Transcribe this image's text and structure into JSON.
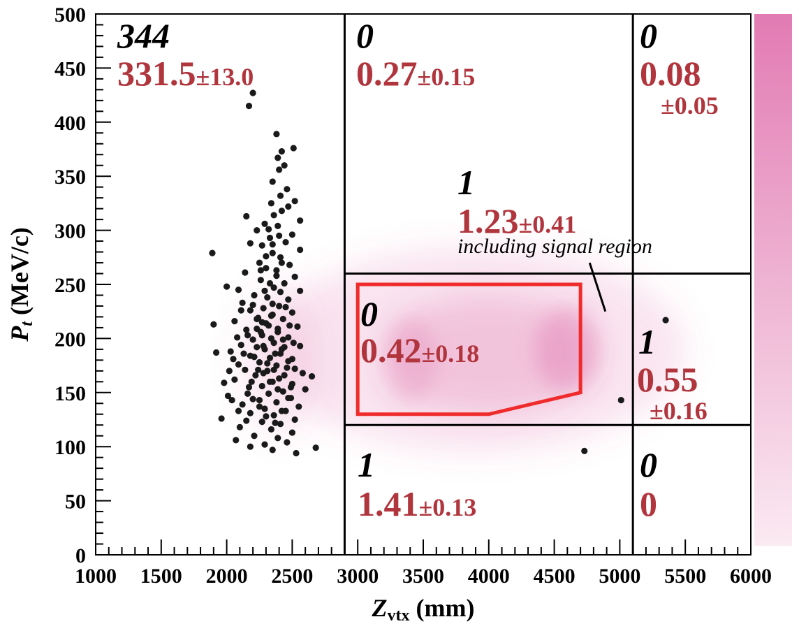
{
  "colors": {
    "estimate_text": "#b0353d",
    "signal_box": "#ef2b2b",
    "points": "#1a1a1a",
    "density": "#d9549a",
    "colorbar_top": "#e27bb3",
    "colorbar_bottom": "#fbeaf2"
  },
  "chart_data": {
    "type": "scatter",
    "xlabel_main": "Z",
    "xlabel_sub": "vtx",
    "xlabel_unit": " (mm)",
    "ylabel_main": "P",
    "ylabel_sub": "t",
    "ylabel_unit": " (MeV/c)",
    "xlim": [
      1000,
      6000
    ],
    "ylim": [
      0,
      500
    ],
    "xticks": [
      "1000",
      "1500",
      "2000",
      "2500",
      "3000",
      "3500",
      "4000",
      "4500",
      "5000",
      "5500",
      "6000"
    ],
    "yticks": [
      "0",
      "50",
      "100",
      "150",
      "200",
      "250",
      "300",
      "350",
      "400",
      "450",
      "500"
    ],
    "region_boundaries": {
      "x": [
        2900,
        5100
      ],
      "y": [
        120,
        260
      ]
    },
    "signal_box": [
      [
        3000,
        250
      ],
      [
        4700,
        250
      ],
      [
        4700,
        150
      ],
      [
        4000,
        130
      ],
      [
        3000,
        130
      ]
    ],
    "signal_annotation": "including signal region",
    "regions": [
      {
        "count": "344",
        "estimate": "331.5",
        "error": "±13.0"
      },
      {
        "count": "0",
        "estimate": "0.27",
        "error": "±0.15"
      },
      {
        "count": "0",
        "estimate": "0.08",
        "error": "±0.05"
      },
      {
        "count": "1",
        "estimate": "1.23",
        "error": "±0.41"
      },
      {
        "count": "0",
        "estimate": "0.42",
        "error": "±0.18"
      },
      {
        "count": "1",
        "estimate": "0.55",
        "error": "±0.16"
      },
      {
        "count": "1",
        "estimate": "1.41",
        "error": "±0.13"
      },
      {
        "count": "0",
        "estimate": "0",
        "error": ""
      }
    ],
    "points": [
      [
        2200,
        427
      ],
      [
        2170,
        415
      ],
      [
        2380,
        389
      ],
      [
        2420,
        373
      ],
      [
        2510,
        376
      ],
      [
        2390,
        367
      ],
      [
        2440,
        360
      ],
      [
        2400,
        356
      ],
      [
        2350,
        345
      ],
      [
        2460,
        338
      ],
      [
        2410,
        332
      ],
      [
        2520,
        327
      ],
      [
        2340,
        325
      ],
      [
        2470,
        322
      ],
      [
        2360,
        314
      ],
      [
        2420,
        318
      ],
      [
        2150,
        313
      ],
      [
        2560,
        309
      ],
      [
        2290,
        306
      ],
      [
        2390,
        304
      ],
      [
        2230,
        300
      ],
      [
        2500,
        296
      ],
      [
        2330,
        293
      ],
      [
        2450,
        289
      ],
      [
        2270,
        286
      ],
      [
        2180,
        288
      ],
      [
        1890,
        279
      ],
      [
        2560,
        282
      ],
      [
        2350,
        279
      ],
      [
        2410,
        275
      ],
      [
        2250,
        270
      ],
      [
        2480,
        268
      ],
      [
        2300,
        265
      ],
      [
        2140,
        261
      ],
      [
        2380,
        258
      ],
      [
        2520,
        257
      ],
      [
        2260,
        254
      ],
      [
        2440,
        251
      ],
      [
        2000,
        248
      ],
      [
        2360,
        247
      ],
      [
        2090,
        245
      ],
      [
        2560,
        244
      ],
      [
        2210,
        240
      ],
      [
        2310,
        238
      ],
      [
        2470,
        236
      ],
      [
        2120,
        233
      ],
      [
        2400,
        230
      ],
      [
        2280,
        228
      ],
      [
        2180,
        226
      ],
      [
        2500,
        224
      ],
      [
        2350,
        222
      ],
      [
        2240,
        219
      ],
      [
        2430,
        218
      ],
      [
        2060,
        216
      ],
      [
        1900,
        213
      ],
      [
        2320,
        212
      ],
      [
        2540,
        211
      ],
      [
        2150,
        208
      ],
      [
        2390,
        206
      ],
      [
        2270,
        203
      ],
      [
        2470,
        201
      ],
      [
        2200,
        199
      ],
      [
        2360,
        196
      ],
      [
        2110,
        194
      ],
      [
        2440,
        192
      ],
      [
        2560,
        193
      ],
      [
        2290,
        190
      ],
      [
        2030,
        188
      ],
      [
        1920,
        187
      ],
      [
        2410,
        186
      ],
      [
        2180,
        184
      ],
      [
        2330,
        182
      ],
      [
        2500,
        181
      ],
      [
        2250,
        178
      ],
      [
        2090,
        176
      ],
      [
        2380,
        175
      ],
      [
        2460,
        173
      ],
      [
        2140,
        171
      ],
      [
        2310,
        170
      ],
      [
        2580,
        168
      ],
      [
        2220,
        166
      ],
      [
        2650,
        165
      ],
      [
        2400,
        163
      ],
      [
        2060,
        162
      ],
      [
        2350,
        160
      ],
      [
        2500,
        158
      ],
      [
        2270,
        156
      ],
      [
        2170,
        155
      ],
      [
        2600,
        153
      ],
      [
        2430,
        151
      ],
      [
        2320,
        149
      ],
      [
        2010,
        147
      ],
      [
        2490,
        145
      ],
      [
        2250,
        143
      ],
      [
        2380,
        141
      ],
      [
        2120,
        139
      ],
      [
        2550,
        137
      ],
      [
        2290,
        135
      ],
      [
        2450,
        133
      ],
      [
        2180,
        131
      ],
      [
        2360,
        129
      ],
      [
        1960,
        126
      ],
      [
        2520,
        125
      ],
      [
        2270,
        123
      ],
      [
        2410,
        121
      ],
      [
        2100,
        118
      ],
      [
        2340,
        116
      ],
      [
        2500,
        113
      ],
      [
        2210,
        110
      ],
      [
        2390,
        108
      ],
      [
        2070,
        106
      ],
      [
        2460,
        104
      ],
      [
        2290,
        102
      ],
      [
        2180,
        100
      ],
      [
        2680,
        99
      ],
      [
        2350,
        97
      ],
      [
        2530,
        94
      ],
      [
        2230,
        192
      ],
      [
        2260,
        206
      ],
      [
        2300,
        214
      ],
      [
        2340,
        221
      ],
      [
        2390,
        209
      ],
      [
        2430,
        199
      ],
      [
        2370,
        186
      ],
      [
        2310,
        177
      ],
      [
        2280,
        168
      ],
      [
        2330,
        160
      ],
      [
        2390,
        153
      ],
      [
        2440,
        166
      ],
      [
        2470,
        179
      ],
      [
        2210,
        183
      ],
      [
        2240,
        171
      ],
      [
        2270,
        215
      ],
      [
        2350,
        232
      ],
      [
        2410,
        243
      ],
      [
        2450,
        229
      ],
      [
        2200,
        231
      ],
      [
        2160,
        203
      ],
      [
        2130,
        186
      ],
      [
        2290,
        244
      ],
      [
        2330,
        251
      ],
      [
        2380,
        263
      ],
      [
        2420,
        270
      ],
      [
        2260,
        263
      ],
      [
        2300,
        276
      ],
      [
        2350,
        287
      ],
      [
        2400,
        295
      ],
      [
        2320,
        301
      ],
      [
        2230,
        218
      ],
      [
        2480,
        212
      ],
      [
        2510,
        196
      ],
      [
        2520,
        172
      ],
      [
        2190,
        160
      ],
      [
        2160,
        149
      ],
      [
        2250,
        137
      ],
      [
        2300,
        128
      ],
      [
        2370,
        122
      ],
      [
        2420,
        133
      ],
      [
        2470,
        145
      ],
      [
        2230,
        209
      ],
      [
        2340,
        200
      ],
      [
        2280,
        193
      ],
      [
        2360,
        171
      ],
      [
        2420,
        190
      ],
      [
        2490,
        155
      ],
      [
        2110,
        226
      ],
      [
        2080,
        201
      ],
      [
        2050,
        181
      ],
      [
        2020,
        170
      ],
      [
        1980,
        159
      ],
      [
        2040,
        143
      ],
      [
        2090,
        133
      ],
      [
        2150,
        124
      ],
      [
        2200,
        144
      ],
      [
        4730,
        96
      ],
      [
        5010,
        143
      ],
      [
        5350,
        217
      ]
    ]
  }
}
